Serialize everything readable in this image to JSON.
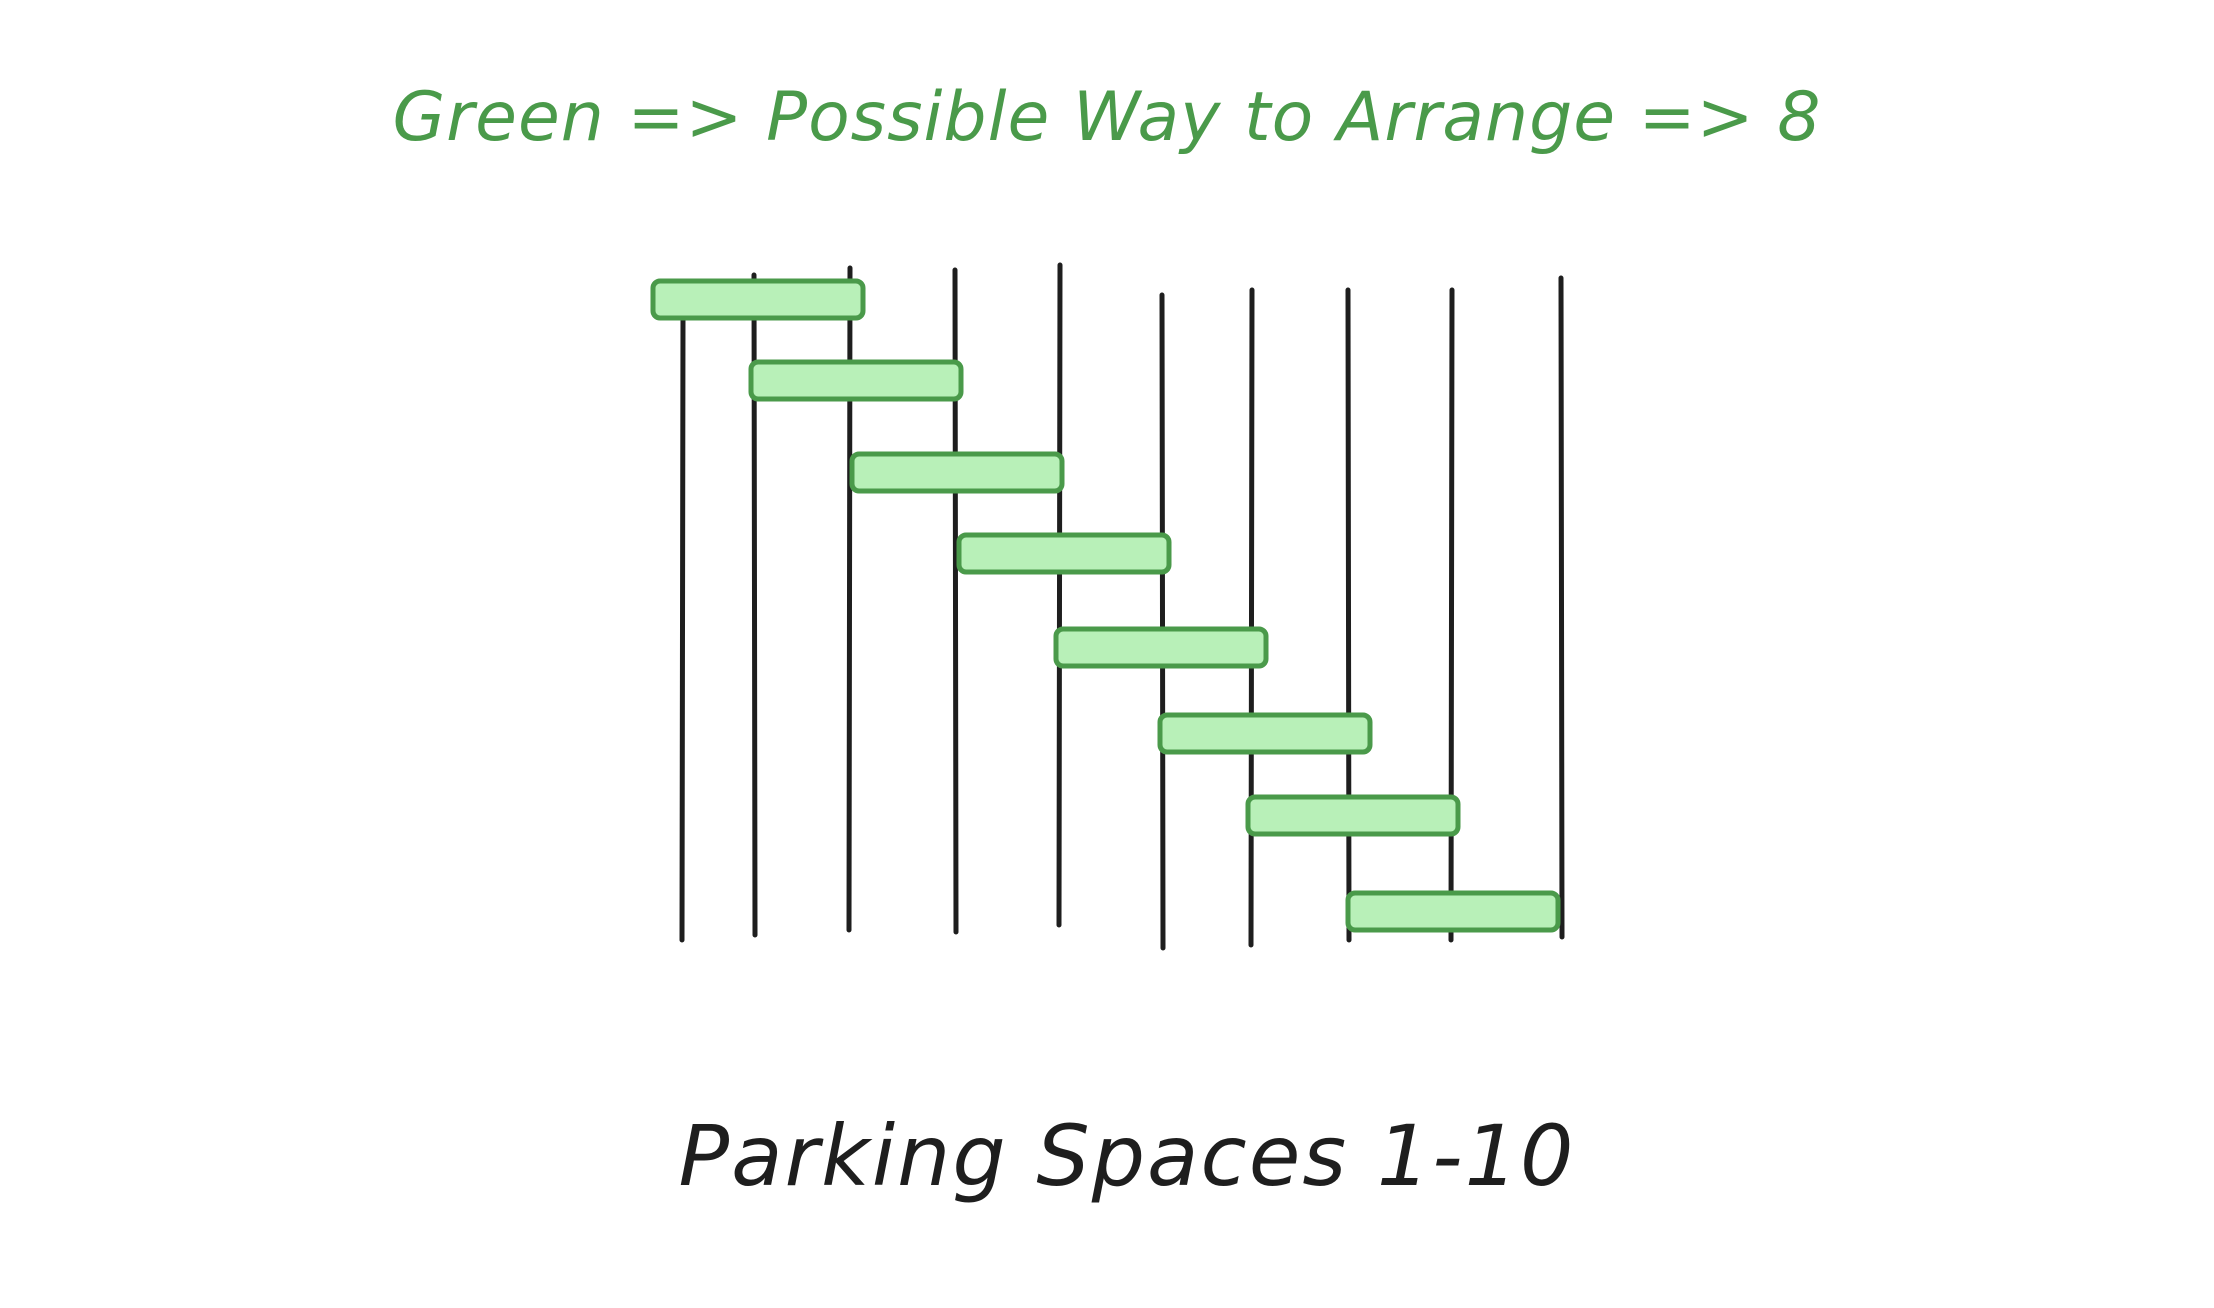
{
  "title": {
    "text": "Green => Possible Way to Arrange => 8",
    "color": "#4a9a4a"
  },
  "caption": {
    "text": "Parking Spaces 1-10",
    "color": "#1e1e1e"
  },
  "diagram": {
    "divider_count": 10,
    "line_color": "#1e1e1e",
    "arrangement_count": 8,
    "car_fill": "#b8f0b8",
    "car_stroke": "#4a9a4a",
    "car_spans": [
      {
        "start_space": 1,
        "end_space": 2
      },
      {
        "start_space": 2,
        "end_space": 3
      },
      {
        "start_space": 3,
        "end_space": 4
      },
      {
        "start_space": 4,
        "end_space": 5
      },
      {
        "start_space": 5,
        "end_space": 6
      },
      {
        "start_space": 6,
        "end_space": 7
      },
      {
        "start_space": 7,
        "end_space": 8
      },
      {
        "start_space": 8,
        "end_space": 9
      }
    ]
  }
}
